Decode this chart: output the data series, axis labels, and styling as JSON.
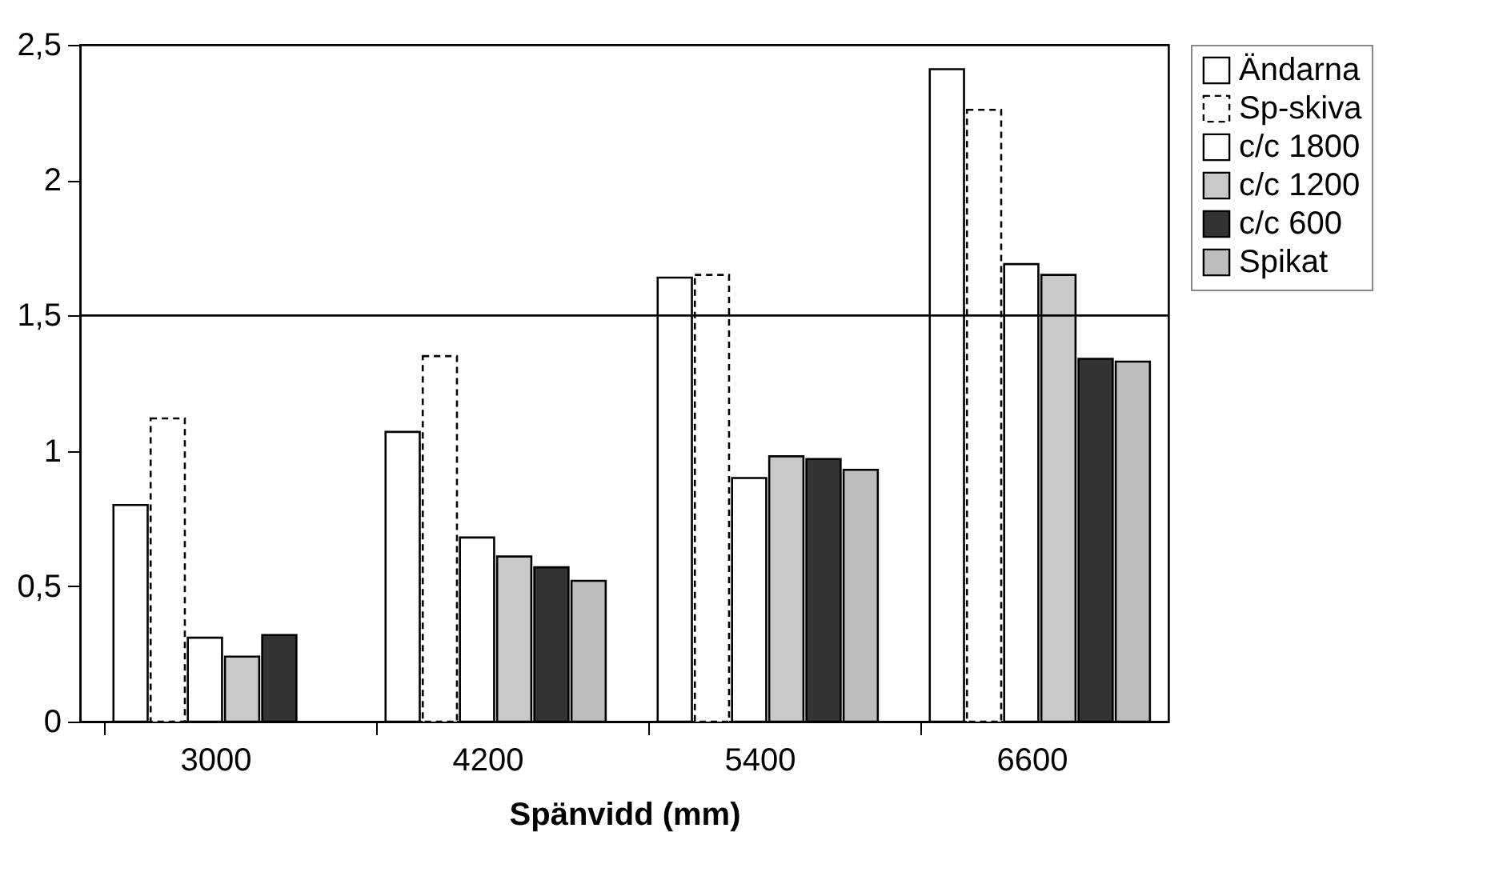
{
  "chart_data": {
    "type": "bar",
    "xlabel": "Spänvidd (mm)",
    "categories": [
      "3000",
      "4200",
      "5400",
      "6600"
    ],
    "series": [
      {
        "name": "Ändarna",
        "color": "#ffffff",
        "values": [
          0.8,
          1.07,
          1.64,
          2.41
        ]
      },
      {
        "name": "Sp-skiva",
        "color": "#ffffff",
        "line_style": "dashed",
        "values": [
          1.12,
          1.35,
          1.65,
          2.26
        ]
      },
      {
        "name": "c/c 1800",
        "color": "#ffffff",
        "values": [
          0.31,
          0.68,
          0.9,
          1.69
        ]
      },
      {
        "name": "c/c 1200",
        "color": "#c8c8c8",
        "values": [
          0.24,
          0.61,
          0.98,
          1.65
        ]
      },
      {
        "name": "c/c 600",
        "color": "#333333",
        "values": [
          0.32,
          0.57,
          0.97,
          1.34
        ]
      },
      {
        "name": "Spikat",
        "color": "#bdbdbd",
        "values": [
          null,
          0.52,
          0.93,
          1.33
        ]
      }
    ],
    "ylim": [
      0,
      2.5
    ],
    "yticks": [
      0,
      {
        "value": 0.5,
        "label": "0,5"
      },
      1,
      {
        "value": 1.5,
        "label": "1,5"
      },
      2,
      {
        "value": 2.5,
        "label": "2,5"
      }
    ],
    "ref_lines": [
      {
        "axis": "y",
        "value": 1.5,
        "color": "#000000"
      }
    ],
    "grid": false,
    "legend": "right"
  }
}
